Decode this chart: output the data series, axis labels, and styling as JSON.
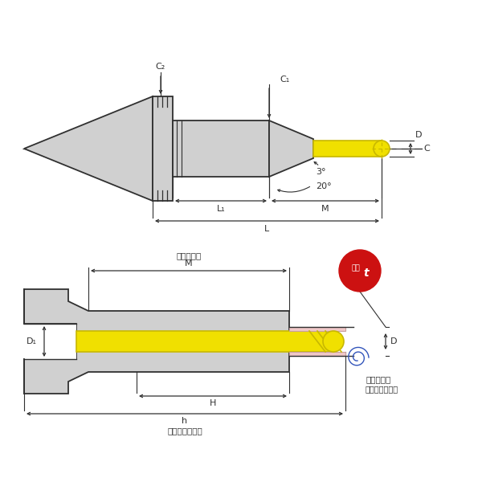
{
  "bg_color": "#ffffff",
  "gray_light": "#d0d0d0",
  "gray_mid": "#b8b8b8",
  "yellow_color": "#f0e000",
  "yellow_edge": "#c8b800",
  "line_color": "#303030",
  "red_color": "#cc1111",
  "pink_color": "#f0c8c8",
  "blue_color": "#3355bb",
  "label_C2": "C₂",
  "label_C1": "C₁",
  "label_D_upper": "D",
  "label_C": "C",
  "label_3deg": "3°",
  "label_20deg": "20°",
  "label_L1": "L₁",
  "label_M_upper": "M",
  "label_L": "L",
  "label_kakou": "加工有効長",
  "label_M_lower": "M",
  "label_niku": "肉厚",
  "label_t": "t",
  "label_D1": "D₁",
  "label_D_lower": "D",
  "label_H": "H",
  "label_h": "h",
  "label_kogu": "工具最大挿入長",
  "label_tsukami1": "つかみ長さ",
  "label_tsukami2": "（最低把持長）"
}
